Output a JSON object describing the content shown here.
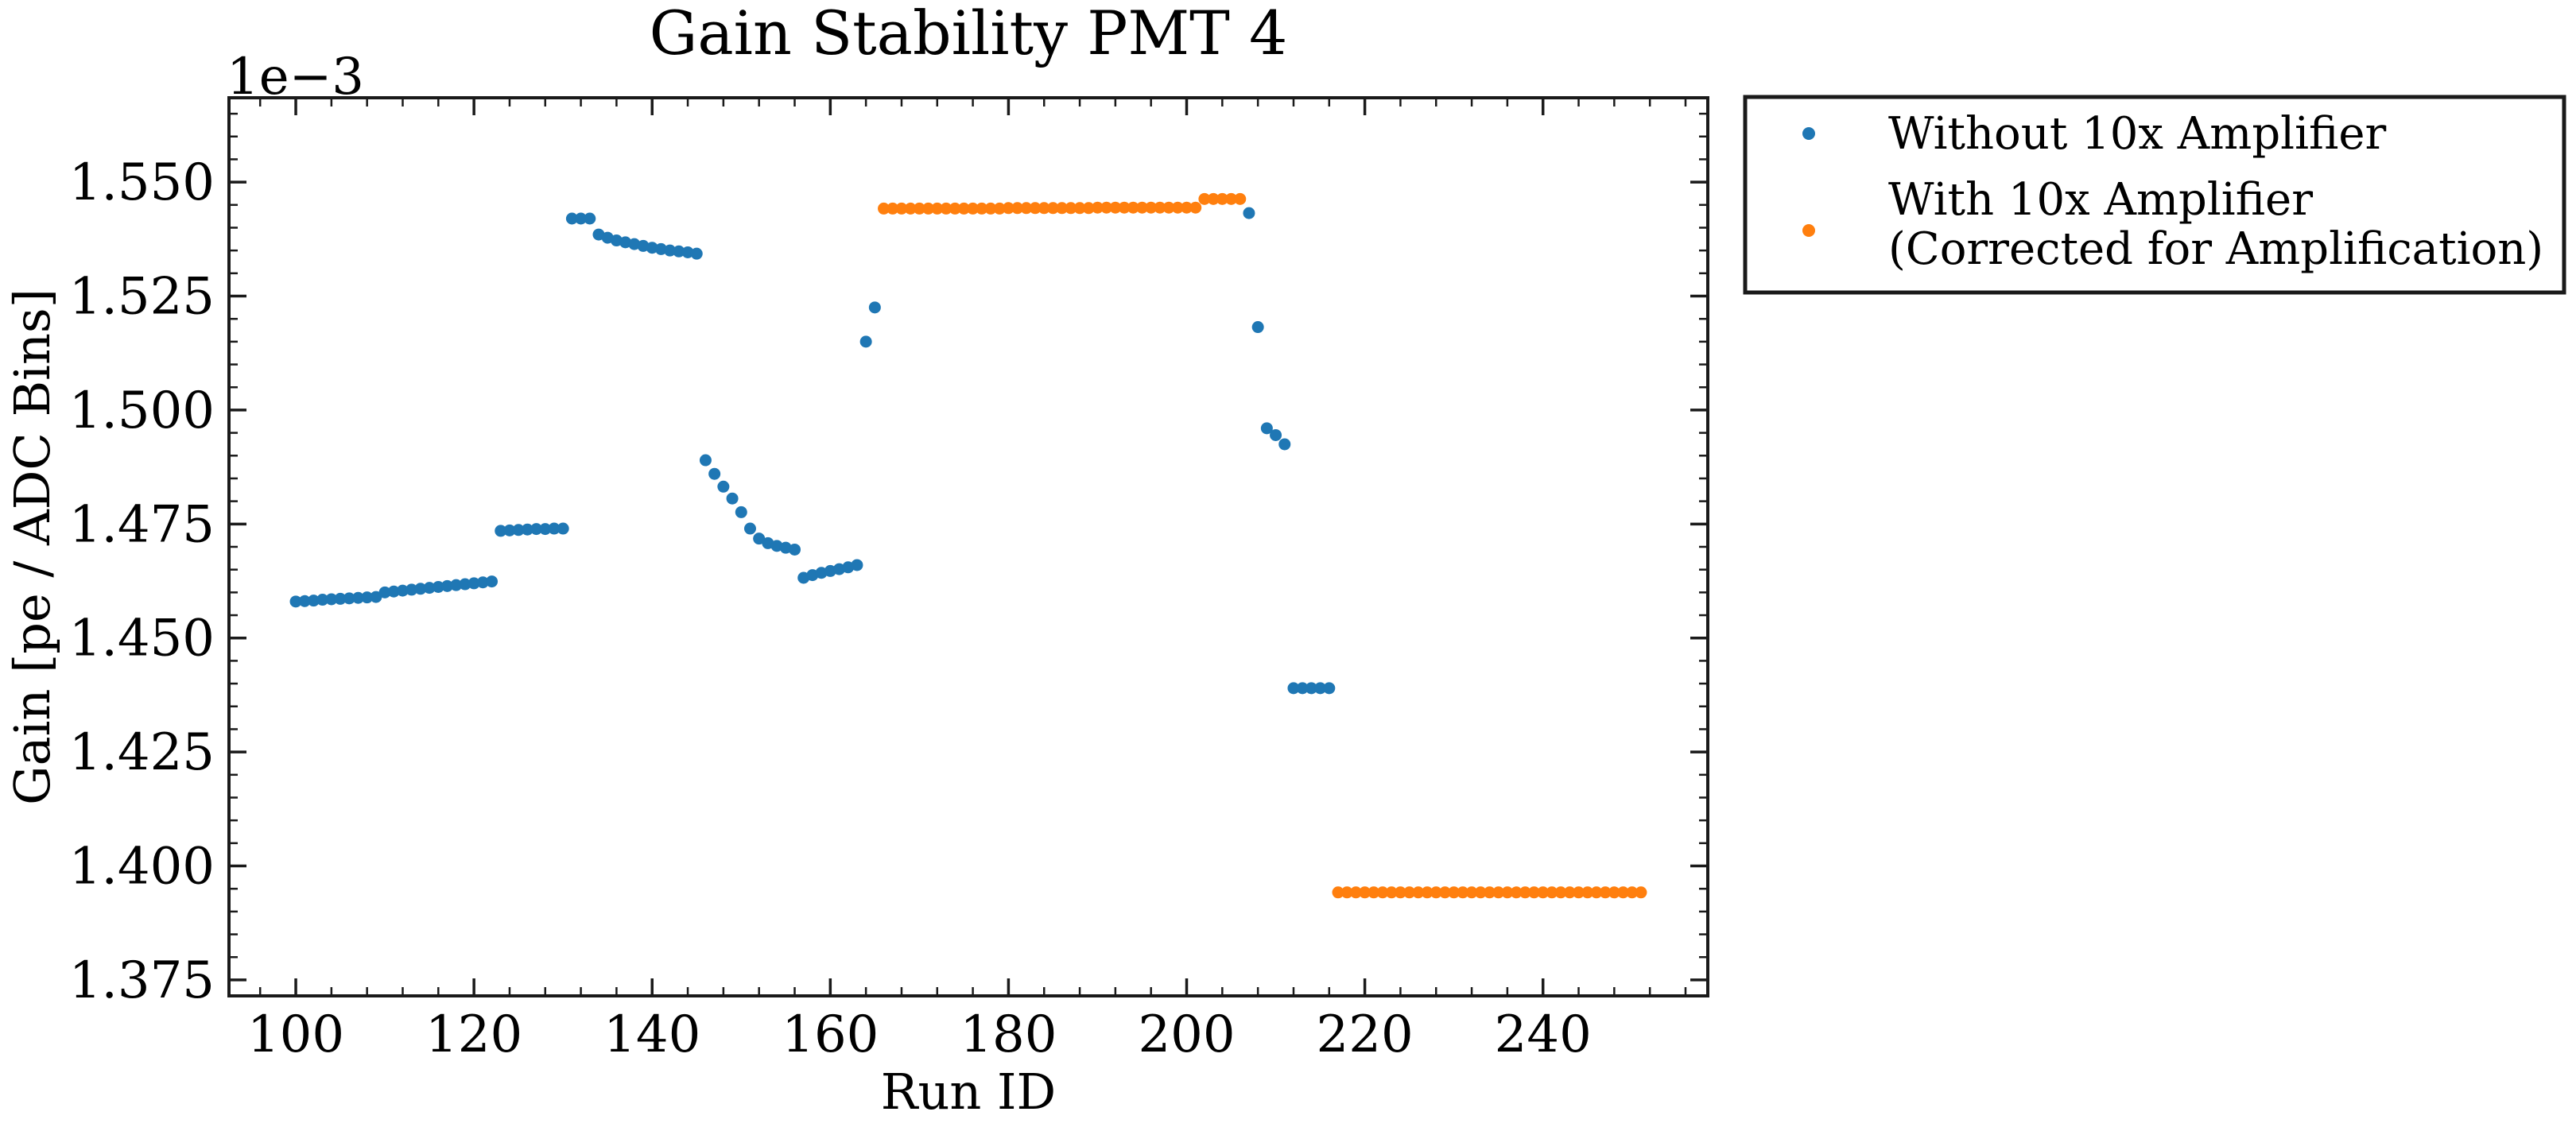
{
  "chart_data": {
    "type": "scatter",
    "title": "Gain Stability PMT 4",
    "xlabel": "Run ID",
    "ylabel": "Gain [pe / ADC Bins]",
    "y_offset_text": "1e−3",
    "xlim": [
      92.5,
      258.5
    ],
    "ylim": [
      1.3715,
      1.5685
    ],
    "y_scale_factor": 0.001,
    "xticks": [
      100,
      120,
      140,
      160,
      180,
      200,
      220,
      240
    ],
    "xtick_labels": [
      "100",
      "120",
      "140",
      "160",
      "180",
      "200",
      "220",
      "240"
    ],
    "yticks": [
      1.375,
      1.4,
      1.425,
      1.45,
      1.475,
      1.5,
      1.525,
      1.55
    ],
    "ytick_labels": [
      "1.375",
      "1.400",
      "1.425",
      "1.450",
      "1.475",
      "1.500",
      "1.525",
      "1.550"
    ],
    "grid": false,
    "legend_position": "outside-upper-right",
    "series": [
      {
        "name": "Without 10x Amplifier",
        "color": "#1f77b4",
        "x": [
          100,
          101,
          102,
          103,
          104,
          105,
          106,
          107,
          108,
          109,
          110,
          111,
          112,
          113,
          114,
          115,
          116,
          117,
          118,
          119,
          120,
          121,
          122,
          123,
          124,
          125,
          126,
          127,
          128,
          129,
          130,
          131,
          132,
          133,
          134,
          135,
          136,
          137,
          138,
          139,
          140,
          141,
          142,
          143,
          144,
          145,
          146,
          147,
          148,
          149,
          150,
          151,
          152,
          153,
          154,
          155,
          156,
          157,
          158,
          159,
          160,
          161,
          162,
          163,
          164,
          165,
          207,
          208,
          209,
          210,
          211,
          212,
          213,
          214,
          215,
          216
        ],
        "y": [
          1.458,
          1.4581,
          1.4582,
          1.4584,
          1.4585,
          1.4586,
          1.4587,
          1.4588,
          1.4589,
          1.459,
          1.46,
          1.4602,
          1.4604,
          1.4606,
          1.4608,
          1.461,
          1.4612,
          1.4614,
          1.4616,
          1.4618,
          1.462,
          1.4622,
          1.4624,
          1.4735,
          1.4736,
          1.4737,
          1.4738,
          1.4739,
          1.4739,
          1.474,
          1.474,
          1.542,
          1.542,
          1.542,
          1.5385,
          1.5378,
          1.5372,
          1.5368,
          1.5364,
          1.536,
          1.5356,
          1.5353,
          1.535,
          1.5348,
          1.5346,
          1.5343,
          1.489,
          1.486,
          1.4832,
          1.4806,
          1.4776,
          1.474,
          1.4718,
          1.4708,
          1.4702,
          1.4698,
          1.4694,
          1.4632,
          1.4638,
          1.4643,
          1.4647,
          1.4651,
          1.4655,
          1.466,
          1.515,
          1.5225,
          1.5432,
          1.5182,
          1.496,
          1.4945,
          1.4925,
          1.439,
          1.439,
          1.439,
          1.439,
          1.439
        ]
      },
      {
        "name": "With 10x Amplifier\n(Corrected for Amplification)",
        "color": "#ff7f0e",
        "x": [
          166,
          167,
          168,
          169,
          170,
          171,
          172,
          173,
          174,
          175,
          176,
          177,
          178,
          179,
          180,
          181,
          182,
          183,
          184,
          185,
          186,
          187,
          188,
          189,
          190,
          191,
          192,
          193,
          194,
          195,
          196,
          197,
          198,
          199,
          200,
          201,
          202,
          203,
          204,
          205,
          206,
          217,
          218,
          219,
          220,
          221,
          222,
          223,
          224,
          225,
          226,
          227,
          228,
          229,
          230,
          231,
          232,
          233,
          234,
          235,
          236,
          237,
          238,
          239,
          240,
          241,
          242,
          243,
          244,
          245,
          246,
          247,
          248,
          249,
          250,
          251
        ],
        "y": [
          1.5442,
          1.5442,
          1.5442,
          1.5442,
          1.5442,
          1.5442,
          1.5442,
          1.5442,
          1.5442,
          1.5442,
          1.5442,
          1.5442,
          1.5442,
          1.5442,
          1.5443,
          1.5443,
          1.5443,
          1.5443,
          1.5443,
          1.5443,
          1.5443,
          1.5443,
          1.5443,
          1.5443,
          1.5444,
          1.5444,
          1.5444,
          1.5444,
          1.5444,
          1.5444,
          1.5444,
          1.5444,
          1.5444,
          1.5444,
          1.5444,
          1.5444,
          1.5463,
          1.5463,
          1.5463,
          1.5463,
          1.5463,
          1.3942,
          1.3942,
          1.3942,
          1.3942,
          1.3942,
          1.3942,
          1.3942,
          1.3942,
          1.3942,
          1.3942,
          1.3942,
          1.3942,
          1.3942,
          1.3942,
          1.3942,
          1.3942,
          1.3942,
          1.3942,
          1.3942,
          1.3942,
          1.3942,
          1.3942,
          1.3942,
          1.3942,
          1.3942,
          1.3942,
          1.3942,
          1.3942,
          1.3942,
          1.3942,
          1.3942,
          1.3942,
          1.3942,
          1.3942,
          1.3942
        ]
      }
    ]
  }
}
